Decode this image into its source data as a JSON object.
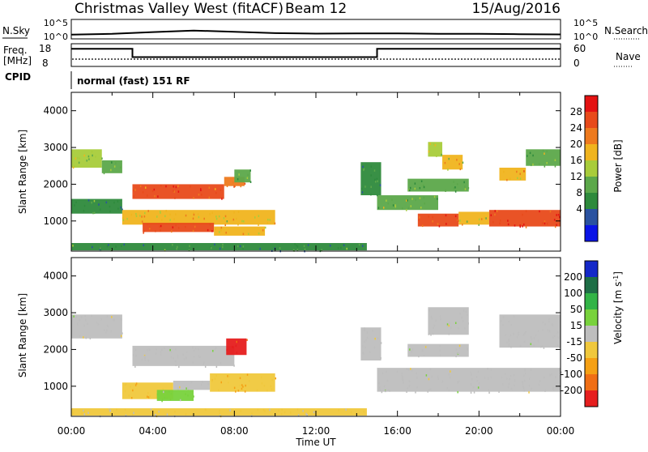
{
  "header": {
    "station": "Christmas Valley West (fitACF)",
    "beam": "Beam 12",
    "date": "15/Aug/2016"
  },
  "top_panels": {
    "nsky_label": "N.Sky",
    "nsearch_label": "N.Search",
    "nsky_ticks": [
      "10^5",
      "10^0"
    ],
    "nsearch_ticks": [
      "10^5",
      "10^0"
    ],
    "freq_label": [
      "Freq.",
      "[MHz]"
    ],
    "freq_ticks": [
      "18",
      "8"
    ],
    "nave_label": "Nave",
    "nave_ticks": [
      "60",
      "0"
    ],
    "cpid_label": "CPID",
    "cpid_value": "normal (fast) 151 RF"
  },
  "x_axis": {
    "label": "Time UT",
    "ticks": [
      "00:00",
      "04:00",
      "08:00",
      "12:00",
      "16:00",
      "20:00",
      "00:00"
    ]
  },
  "colors": {
    "power_scale": [
      "#0a14e6",
      "#2a52a0",
      "#2e8a3c",
      "#5ca84a",
      "#a8cc3a",
      "#f0b41e",
      "#ee7a1e",
      "#e84a1a",
      "#e41212"
    ],
    "velocity_scale": [
      "#1428c8",
      "#1e6e46",
      "#32b446",
      "#78d23c",
      "#bebebe",
      "#f0c83c",
      "#f5a014",
      "#f06e14",
      "#e61e1e"
    ]
  },
  "chart_data": [
    {
      "type": "heatmap",
      "title": "Power",
      "xlabel": "Time UT",
      "ylabel": "Slant Range [km]",
      "xlim": [
        0,
        24
      ],
      "ylim": [
        180,
        4500
      ],
      "yticks": [
        "1000",
        "2000",
        "3000",
        "4000"
      ],
      "colorbar_label": "Power [dB]",
      "colorbar_ticks": [
        "28",
        "24",
        "20",
        "16",
        "12",
        "8",
        "4"
      ],
      "colorbar_range": [
        0,
        32
      ],
      "regions": [
        {
          "t": [
            0.0,
            1.5
          ],
          "r": [
            2450,
            2950
          ],
          "v": 16
        },
        {
          "t": [
            1.5,
            2.5
          ],
          "r": [
            2300,
            2650
          ],
          "v": 14
        },
        {
          "t": [
            3.0,
            7.5
          ],
          "r": [
            1600,
            2000
          ],
          "v": 26
        },
        {
          "t": [
            7.5,
            8.5
          ],
          "r": [
            1950,
            2200
          ],
          "v": 22
        },
        {
          "t": [
            0.0,
            2.5
          ],
          "r": [
            1200,
            1600
          ],
          "v": 10
        },
        {
          "t": [
            2.5,
            10.0
          ],
          "r": [
            900,
            1300
          ],
          "v": 19
        },
        {
          "t": [
            3.5,
            7.0
          ],
          "r": [
            700,
            950
          ],
          "v": 27
        },
        {
          "t": [
            7.0,
            9.5
          ],
          "r": [
            600,
            850
          ],
          "v": 21
        },
        {
          "t": [
            8.0,
            8.8
          ],
          "r": [
            2050,
            2400
          ],
          "v": 12
        },
        {
          "t": [
            0.0,
            14.5
          ],
          "r": [
            200,
            400
          ],
          "v": 10
        },
        {
          "t": [
            15.0,
            18.0
          ],
          "r": [
            1300,
            1700
          ],
          "v": 14
        },
        {
          "t": [
            17.0,
            19.0
          ],
          "r": [
            850,
            1200
          ],
          "v": 27
        },
        {
          "t": [
            19.0,
            20.5
          ],
          "r": [
            900,
            1250
          ],
          "v": 18
        },
        {
          "t": [
            20.5,
            24.0
          ],
          "r": [
            850,
            1300
          ],
          "v": 28
        },
        {
          "t": [
            17.5,
            18.2
          ],
          "r": [
            2750,
            3150
          ],
          "v": 17
        },
        {
          "t": [
            18.2,
            19.2
          ],
          "r": [
            2400,
            2800
          ],
          "v": 19
        },
        {
          "t": [
            21.0,
            22.3
          ],
          "r": [
            2100,
            2450
          ],
          "v": 21
        },
        {
          "t": [
            22.3,
            24.0
          ],
          "r": [
            2500,
            2950
          ],
          "v": 14
        },
        {
          "t": [
            14.2,
            15.2
          ],
          "r": [
            1700,
            2600
          ],
          "v": 9
        },
        {
          "t": [
            16.5,
            19.5
          ],
          "r": [
            1800,
            2150
          ],
          "v": 12
        }
      ]
    },
    {
      "type": "heatmap",
      "title": "Velocity",
      "xlabel": "Time UT",
      "ylabel": "Slant Range [km]",
      "xlim": [
        0,
        24
      ],
      "ylim": [
        180,
        4500
      ],
      "yticks": [
        "1000",
        "2000",
        "3000",
        "4000"
      ],
      "colorbar_label": "Velocity [m s^-1]",
      "colorbar_ticks": [
        "200",
        "100",
        "50",
        "15",
        "-15",
        "-50",
        "-100",
        "-200"
      ],
      "colorbar_range": [
        -250,
        250
      ],
      "regions": [
        {
          "t": [
            0.0,
            2.5
          ],
          "r": [
            2300,
            2950
          ],
          "v": 0
        },
        {
          "t": [
            3.0,
            8.0
          ],
          "r": [
            1550,
            2100
          ],
          "v": 0
        },
        {
          "t": [
            7.6,
            8.6
          ],
          "r": [
            1850,
            2300
          ],
          "v": -200
        },
        {
          "t": [
            2.5,
            5.0
          ],
          "r": [
            650,
            1100
          ],
          "v": -80
        },
        {
          "t": [
            5.0,
            6.8
          ],
          "r": [
            900,
            1150
          ],
          "v": 0
        },
        {
          "t": [
            6.8,
            10.0
          ],
          "r": [
            850,
            1350
          ],
          "v": -80
        },
        {
          "t": [
            4.2,
            6.0
          ],
          "r": [
            600,
            900
          ],
          "v": 40
        },
        {
          "t": [
            0.0,
            14.5
          ],
          "r": [
            200,
            400
          ],
          "v": -30
        },
        {
          "t": [
            15.0,
            24.0
          ],
          "r": [
            850,
            1500
          ],
          "v": 0
        },
        {
          "t": [
            17.5,
            19.5
          ],
          "r": [
            2400,
            3150
          ],
          "v": 0
        },
        {
          "t": [
            21.0,
            24.0
          ],
          "r": [
            2050,
            2950
          ],
          "v": 0
        },
        {
          "t": [
            16.5,
            19.5
          ],
          "r": [
            1800,
            2150
          ],
          "v": 0
        },
        {
          "t": [
            14.2,
            15.2
          ],
          "r": [
            1700,
            2600
          ],
          "v": 0
        }
      ]
    },
    {
      "type": "line",
      "title": "N.Sky",
      "x": [
        0,
        2,
        4,
        6,
        8,
        10,
        12,
        14,
        16,
        18,
        20,
        22,
        24
      ],
      "series": [
        {
          "name": "N.Sky",
          "values": [
            1.0,
            1.3,
            2.0,
            2.6,
            2.1,
            1.6,
            1.4,
            1.5,
            1.5,
            1.3,
            1.3,
            1.2,
            1.1
          ]
        }
      ]
    },
    {
      "type": "line",
      "title": "Freq. [MHz]",
      "x": [
        0,
        3.0,
        3.0,
        15.0,
        15.0,
        24
      ],
      "series": [
        {
          "name": "Freq.",
          "values": [
            15.8,
            15.8,
            12.1,
            12.1,
            15.8,
            15.8
          ]
        }
      ]
    }
  ]
}
